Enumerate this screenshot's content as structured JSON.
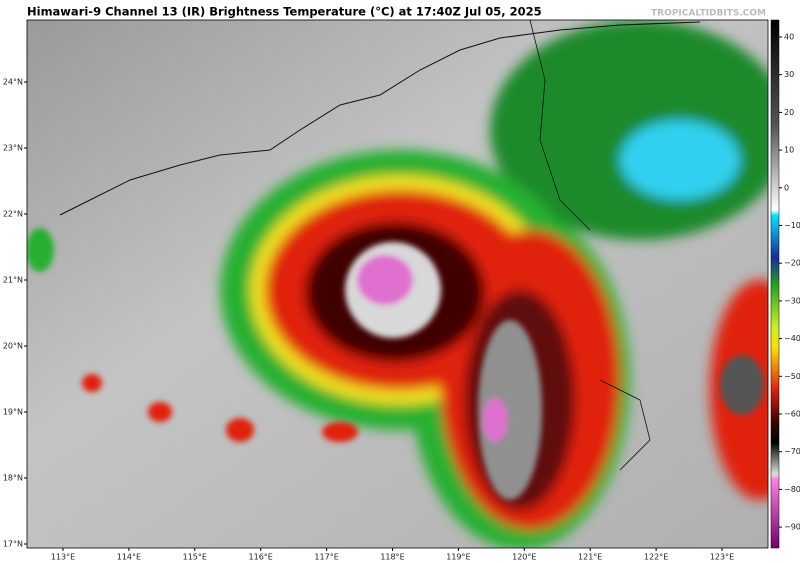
{
  "header": {
    "title": "Himawari-9 Channel 13 (IR) Brightness Temperature (°C) at 17:40Z Jul 05, 2025",
    "credit": "TROPICALTIDBITS.COM"
  },
  "map": {
    "lat_labels": [
      "24°N",
      "23°N",
      "22°N",
      "21°N",
      "20°N",
      "19°N",
      "18°N",
      "17°N"
    ],
    "lon_labels": [
      "113°E",
      "114°E",
      "115°E",
      "116°E",
      "117°E",
      "118°E",
      "119°E",
      "120°E",
      "121°E",
      "122°E",
      "123°E"
    ]
  },
  "colorbar": {
    "ticks": [
      "40",
      "30",
      "20",
      "10",
      "0",
      "−10",
      "−20",
      "−30",
      "−40",
      "−50",
      "−60",
      "−70",
      "−80",
      "−90"
    ]
  }
}
